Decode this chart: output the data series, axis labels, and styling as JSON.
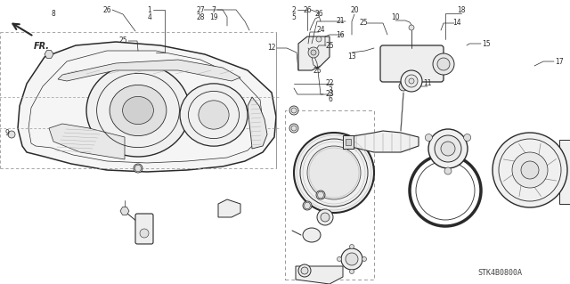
{
  "bg_color": "#ffffff",
  "fig_width": 6.4,
  "fig_height": 3.19,
  "dpi": 100,
  "watermark": "STK4B0800A",
  "line_color": "#2a2a2a",
  "light_gray": "#cccccc",
  "mid_gray": "#888888",
  "dashed_color": "#999999"
}
